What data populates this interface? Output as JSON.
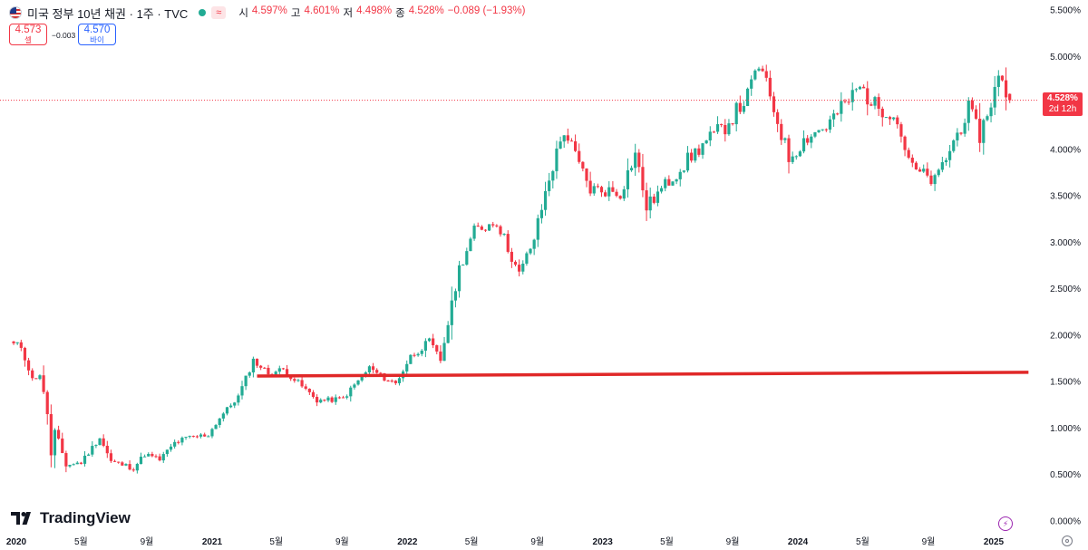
{
  "header": {
    "symbol_title": "미국 정부 10년 채권 · 1주 · TVC",
    "wave_icon": "≈",
    "ohlc": [
      {
        "key": "시",
        "value": "4.597%"
      },
      {
        "key": "고",
        "value": "4.601%"
      },
      {
        "key": "저",
        "value": "4.498%"
      },
      {
        "key": "종",
        "value": "4.528%"
      },
      {
        "key": "",
        "value": "−0.089 (−1.93%)"
      }
    ]
  },
  "quote": {
    "sell_price": "4.573",
    "sell_label": "셀",
    "spread": "−0.003",
    "buy_price": "4.570",
    "buy_label": "바이"
  },
  "price_badge": {
    "price": "4.528%",
    "countdown": "2d 12h"
  },
  "logo": {
    "text": "TradingView"
  },
  "icons": {
    "lightning": "lightning-icon",
    "settings": "settings-icon",
    "flag": "us-flag-icon"
  },
  "colors": {
    "up": "#22ab94",
    "down": "#f23645",
    "trendline": "#e02828",
    "last_price_line": "#f23645"
  },
  "chart_data": {
    "type": "candlestick",
    "timeframe": "1W",
    "y_axis": {
      "unit": "%",
      "ylim": [
        0.0,
        5.5
      ],
      "ticks": [
        "5.500%",
        "5.000%",
        "4.500%",
        "4.000%",
        "3.500%",
        "3.000%",
        "2.500%",
        "2.000%",
        "1.500%",
        "1.000%",
        "0.500%",
        "0.000%"
      ]
    },
    "x_axis": {
      "tick_labels": [
        {
          "label": "2020",
          "date": "2020-01-01",
          "year": true
        },
        {
          "label": "5월",
          "date": "2020-05-01",
          "year": false
        },
        {
          "label": "9월",
          "date": "2020-09-01",
          "year": false
        },
        {
          "label": "2021",
          "date": "2021-01-01",
          "year": true
        },
        {
          "label": "5월",
          "date": "2021-05-01",
          "year": false
        },
        {
          "label": "9월",
          "date": "2021-09-01",
          "year": false
        },
        {
          "label": "2022",
          "date": "2022-01-01",
          "year": true
        },
        {
          "label": "5월",
          "date": "2022-05-01",
          "year": false
        },
        {
          "label": "9월",
          "date": "2022-09-01",
          "year": false
        },
        {
          "label": "2023",
          "date": "2023-01-01",
          "year": true
        },
        {
          "label": "5월",
          "date": "2023-05-01",
          "year": false
        },
        {
          "label": "9월",
          "date": "2023-09-01",
          "year": false
        },
        {
          "label": "2024",
          "date": "2024-01-01",
          "year": true
        },
        {
          "label": "5월",
          "date": "2024-05-01",
          "year": false
        },
        {
          "label": "9월",
          "date": "2024-09-01",
          "year": false
        },
        {
          "label": "2025",
          "date": "2025-01-01",
          "year": true
        }
      ]
    },
    "series_path": [
      [
        "2019-12-27",
        1.9
      ],
      [
        "2020-01-10",
        1.88
      ],
      [
        "2020-01-31",
        1.52
      ],
      [
        "2020-02-14",
        1.58
      ],
      [
        "2020-02-28",
        1.16
      ],
      [
        "2020-03-06",
        0.7
      ],
      [
        "2020-03-13",
        0.96
      ],
      [
        "2020-03-20",
        0.86
      ],
      [
        "2020-04-03",
        0.6
      ],
      [
        "2020-05-01",
        0.63
      ],
      [
        "2020-06-05",
        0.9
      ],
      [
        "2020-06-26",
        0.64
      ],
      [
        "2020-08-07",
        0.57
      ],
      [
        "2020-08-28",
        0.72
      ],
      [
        "2020-09-25",
        0.66
      ],
      [
        "2020-10-23",
        0.84
      ],
      [
        "2020-11-13",
        0.89
      ],
      [
        "2020-12-25",
        0.93
      ],
      [
        "2021-01-15",
        1.11
      ],
      [
        "2021-02-19",
        1.34
      ],
      [
        "2021-03-19",
        1.73
      ],
      [
        "2021-04-16",
        1.59
      ],
      [
        "2021-05-14",
        1.63
      ],
      [
        "2021-06-18",
        1.45
      ],
      [
        "2021-07-16",
        1.3
      ],
      [
        "2021-08-06",
        1.3
      ],
      [
        "2021-09-03",
        1.32
      ],
      [
        "2021-10-22",
        1.65
      ],
      [
        "2021-11-12",
        1.56
      ],
      [
        "2021-12-10",
        1.48
      ],
      [
        "2022-01-07",
        1.77
      ],
      [
        "2022-02-11",
        1.93
      ],
      [
        "2022-03-04",
        1.73
      ],
      [
        "2022-04-08",
        2.72
      ],
      [
        "2022-05-06",
        3.12
      ],
      [
        "2022-06-17",
        3.23
      ],
      [
        "2022-07-29",
        2.65
      ],
      [
        "2022-08-26",
        3.04
      ],
      [
        "2022-09-23",
        3.69
      ],
      [
        "2022-10-21",
        4.21
      ],
      [
        "2022-11-18",
        3.83
      ],
      [
        "2022-12-09",
        3.57
      ],
      [
        "2023-01-06",
        3.56
      ],
      [
        "2023-02-03",
        3.53
      ],
      [
        "2023-03-03",
        3.96
      ],
      [
        "2023-03-24",
        3.38
      ],
      [
        "2023-04-14",
        3.52
      ],
      [
        "2023-05-26",
        3.8
      ],
      [
        "2023-07-07",
        4.05
      ],
      [
        "2023-08-18",
        4.25
      ],
      [
        "2023-09-29",
        4.57
      ],
      [
        "2023-10-20",
        4.91
      ],
      [
        "2023-11-17",
        4.44
      ],
      [
        "2023-12-15",
        3.91
      ],
      [
        "2024-01-19",
        4.14
      ],
      [
        "2024-02-23",
        4.25
      ],
      [
        "2024-04-26",
        4.67
      ],
      [
        "2024-05-24",
        4.47
      ],
      [
        "2024-06-28",
        4.4
      ],
      [
        "2024-08-02",
        3.79
      ],
      [
        "2024-09-13",
        3.65
      ],
      [
        "2024-10-18",
        4.08
      ],
      [
        "2024-11-15",
        4.43
      ],
      [
        "2024-12-06",
        4.15
      ],
      [
        "2025-01-10",
        4.76
      ],
      [
        "2025-01-24",
        4.62
      ],
      [
        "2025-01-31",
        4.53
      ]
    ],
    "last": {
      "open": 4.597,
      "high": 4.601,
      "low": 4.498,
      "close": 4.528,
      "change": -0.089,
      "change_pct": -1.93
    },
    "trendline": {
      "start": [
        "2021-03-26",
        1.56
      ],
      "end": [
        "2025-03-07",
        1.6
      ],
      "color": "#e02828"
    },
    "last_price_line": 4.528,
    "grid": false
  }
}
